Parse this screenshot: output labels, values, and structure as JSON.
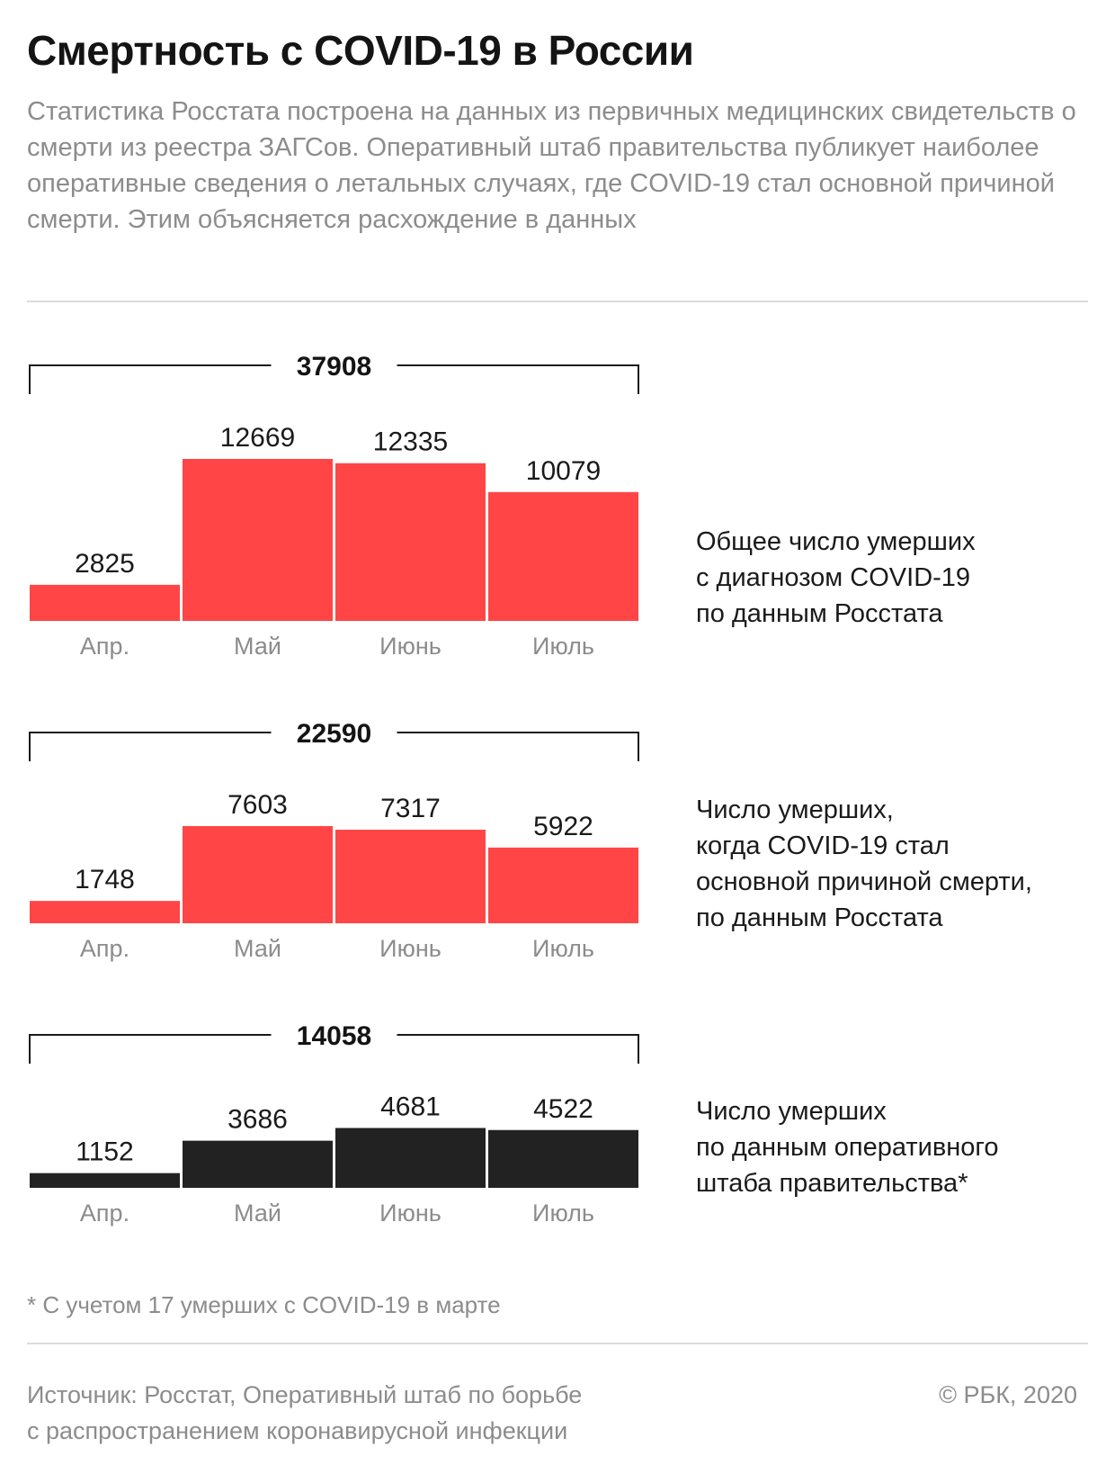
{
  "header": {
    "title": "Смертность с COVID-19 в России",
    "subtitle": "Статистика Росстата построена на данных из первичных медицинских свидетельств о смерти из реестра ЗАГСов. Оперативный штаб правительства публикует наиболее оперативные сведения о летальных случаях, где COVID-19 стал основной причиной смерти. Этим объясняется расхождение в данных"
  },
  "colors": {
    "red": "#ff4545",
    "black": "#222222",
    "muted": "#8c8c8c",
    "rule": "#dcdcdc"
  },
  "chart_data": [
    {
      "type": "bar",
      "categories": [
        "Апр.",
        "Май",
        "Июнь",
        "Июль"
      ],
      "values": [
        2825,
        12669,
        12335,
        10079
      ],
      "total": "37908",
      "color": "#ff4545",
      "description": [
        "Общее число умерших",
        "с диагнозом COVID-19",
        "по данным Росстата"
      ]
    },
    {
      "type": "bar",
      "categories": [
        "Апр.",
        "Май",
        "Июнь",
        "Июль"
      ],
      "values": [
        1748,
        7603,
        7317,
        5922
      ],
      "total": "22590",
      "color": "#ff4545",
      "description": [
        "Число умерших,",
        "когда COVID-19 стал",
        "основной причиной смерти,",
        "по данным Росстата"
      ]
    },
    {
      "type": "bar",
      "categories": [
        "Апр.",
        "Май",
        "Июнь",
        "Июль"
      ],
      "values": [
        1152,
        3686,
        4681,
        4522
      ],
      "total": "14058",
      "color": "#222222",
      "description": [
        "Число умерших",
        "по данным оперативного",
        "штаба правительства*"
      ]
    }
  ],
  "footnote": "* С учетом 17 умерших с COVID-19 в марте",
  "footer": {
    "source_lines": [
      "Источник: Росстат, Оперативный штаб по борьбе",
      "с распространением коронавирусной инфекции"
    ],
    "copyright": "© РБК, 2020"
  }
}
